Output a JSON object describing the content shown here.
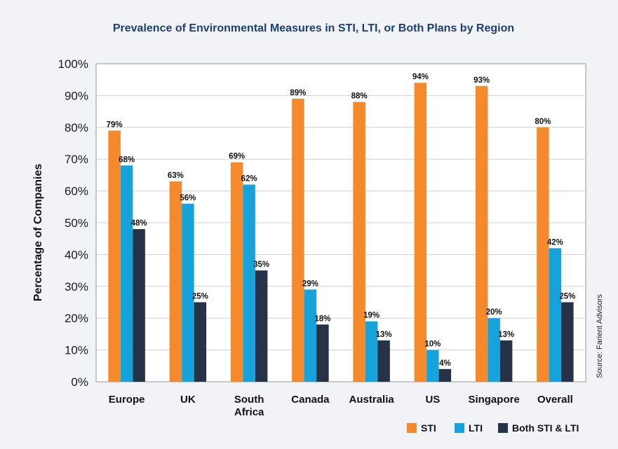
{
  "chart_data": {
    "type": "bar",
    "title": "Prevalence of Environmental Measures in STI, LTI, or Both Plans by Region",
    "ylabel": "Percentage of Companies",
    "xlabel": "",
    "ylim": [
      0,
      100
    ],
    "yticks": [
      "0%",
      "10%",
      "20%",
      "30%",
      "40%",
      "50%",
      "60%",
      "70%",
      "80%",
      "90%",
      "100%"
    ],
    "grid": true,
    "legend_position": "bottom-right",
    "categories": [
      [
        "Europe"
      ],
      [
        "UK"
      ],
      [
        "South",
        "Africa"
      ],
      [
        "Canada"
      ],
      [
        "Australia"
      ],
      [
        "US"
      ],
      [
        "Singapore"
      ],
      [
        "Overall"
      ]
    ],
    "series": [
      {
        "name": "STI",
        "color": "#f58a2c",
        "values": [
          79,
          63,
          69,
          89,
          88,
          94,
          93,
          80
        ],
        "labels": [
          "79%",
          "63%",
          "69%",
          "89%",
          "88%",
          "94%",
          "93%",
          "80%"
        ]
      },
      {
        "name": "LTI",
        "color": "#16a3dc",
        "values": [
          68,
          56,
          62,
          29,
          19,
          10,
          20,
          42
        ],
        "labels": [
          "68%",
          "56%",
          "62%",
          "29%",
          "19%",
          "10%",
          "20%",
          "42%"
        ]
      },
      {
        "name": "Both STI & LTI",
        "color": "#263247",
        "values": [
          48,
          25,
          35,
          18,
          13,
          4,
          13,
          25
        ],
        "labels": [
          "48%",
          "25%",
          "35%",
          "18%",
          "13%",
          "4%",
          "13%",
          "25%"
        ]
      }
    ],
    "source": "Source: Farient Advisors",
    "title_color": "#1b3f73"
  }
}
